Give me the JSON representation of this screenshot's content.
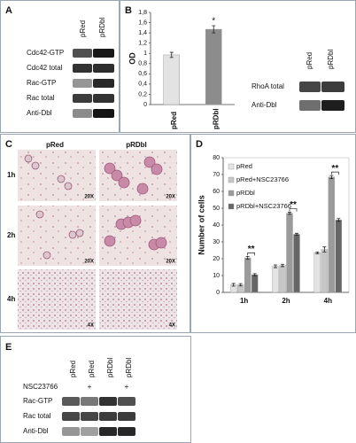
{
  "panels": {
    "A": {
      "label": "A",
      "columns": [
        "pRed",
        "pRDbl"
      ],
      "rows": [
        "Cdc42-GTP",
        "Cdc42 total",
        "Rac-GTP",
        "Rac total",
        "Anti-Dbl"
      ]
    },
    "B": {
      "label": "B",
      "blot_columns": [
        "pRed",
        "pRDbl"
      ],
      "blot_rows": [
        "RhoA total",
        "Anti-Dbl"
      ]
    },
    "C": {
      "label": "C",
      "columns": [
        "pRed",
        "pRDbl"
      ],
      "rows": [
        "1h",
        "2h",
        "4h"
      ],
      "magnifications": [
        [
          "20X",
          "20X"
        ],
        [
          "20X",
          "20X"
        ],
        [
          "4X",
          "4X"
        ]
      ]
    },
    "D": {
      "label": "D"
    },
    "E": {
      "label": "E",
      "columns": [
        "pRed",
        "pRed",
        "pRDbl",
        "pRDbl"
      ],
      "treatment": "NSC23766",
      "treatment_marks": [
        null,
        "+",
        null,
        "+"
      ],
      "rows": [
        "Rac-GTP",
        "Rac total",
        "Anti-Dbl"
      ]
    }
  },
  "chart_data": [
    {
      "type": "bar",
      "ylabel": "OD",
      "categories": [
        "pRed",
        "pRDbl"
      ],
      "values": [
        0.97,
        1.47
      ],
      "errors": [
        0.05,
        0.07
      ],
      "colors": [
        "#e3e3e3",
        "#8c8c8c"
      ],
      "value_annotations": [
        null,
        "*"
      ],
      "ylim": [
        0,
        1.8
      ],
      "yticks": [
        0,
        {
          "value": 0.2,
          "label": "0,2"
        },
        {
          "value": 0.4,
          "label": "0,4"
        },
        {
          "value": 0.6,
          "label": "0,6"
        },
        {
          "value": 0.8,
          "label": "0,8"
        },
        1,
        {
          "value": 1.2,
          "label": "1,2"
        },
        {
          "value": 1.4,
          "label": "1,4"
        },
        {
          "value": 1.6,
          "label": "1,6"
        },
        {
          "value": 1.8,
          "label": "1,8"
        }
      ]
    },
    {
      "type": "grouped_bar",
      "ylabel": "Number of cells",
      "categories": [
        "1h",
        "2h",
        "4h"
      ],
      "series": [
        {
          "name": "pRed",
          "color": "#e3e3e3",
          "values": [
            4.5,
            15.5,
            23.5
          ],
          "errors": [
            0.8,
            0.8,
            0.5
          ]
        },
        {
          "name": "pRed+NSC23766",
          "color": "#c6c6c6",
          "values": [
            4.5,
            16,
            25.5
          ],
          "errors": [
            0.7,
            0.7,
            1.5
          ]
        },
        {
          "name": "pRDbl",
          "color": "#9b9b9b",
          "values": [
            20.5,
            47,
            68.5
          ],
          "errors": [
            0.9,
            0.6,
            0.9
          ]
        },
        {
          "name": "pRDbl+NSC23766",
          "color": "#666666",
          "values": [
            10.5,
            34.5,
            43
          ],
          "errors": [
            0.6,
            0.6,
            0.8
          ]
        }
      ],
      "annotations": [
        "**",
        "**",
        "**"
      ],
      "ylim": [
        0,
        80
      ],
      "yticks": [
        0,
        10,
        20,
        30,
        40,
        50,
        60,
        70,
        80
      ]
    }
  ]
}
